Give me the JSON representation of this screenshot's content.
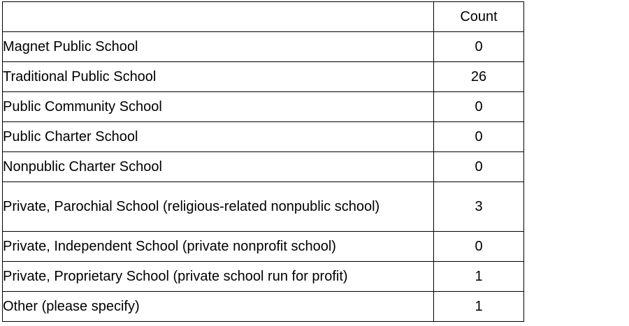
{
  "table": {
    "header": {
      "label": "",
      "count": "Count"
    },
    "rows": [
      {
        "label": "Magnet Public School",
        "count": "0"
      },
      {
        "label": "Traditional Public School",
        "count": "26"
      },
      {
        "label": "Public Community School",
        "count": "0"
      },
      {
        "label": "Public Charter School",
        "count": "0"
      },
      {
        "label": "Nonpublic Charter School",
        "count": "0"
      },
      {
        "label": "Private, Parochial School (religious-related nonpublic school)",
        "count": "3"
      },
      {
        "label": "Private, Independent School (private nonprofit school)",
        "count": "0"
      },
      {
        "label": "Private, Proprietary School (private school run for profit)",
        "count": "1"
      },
      {
        "label": "Other (please specify)",
        "count": "1"
      }
    ]
  },
  "colors": {
    "border": "#000000",
    "text": "#000000",
    "background": "#ffffff"
  }
}
